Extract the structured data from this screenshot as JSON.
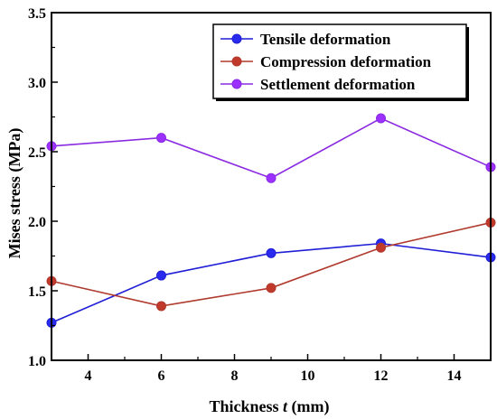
{
  "chart_data": {
    "type": "line",
    "xlabel_prefix": "Thickness ",
    "xlabel_var": "t",
    "xlabel_suffix": " (mm)",
    "ylabel": "Mises stress (MPa)",
    "xlim": [
      3,
      15
    ],
    "ylim": [
      1.0,
      3.5
    ],
    "xticks": [
      4,
      6,
      8,
      10,
      12,
      14
    ],
    "yticks": [
      1.0,
      1.5,
      2.0,
      2.5,
      3.0,
      3.5
    ],
    "ytick_labels": [
      "1.0",
      "1.5",
      "2.0",
      "2.5",
      "3.0",
      "3.5"
    ],
    "x": [
      3,
      6,
      9,
      12,
      15
    ],
    "legend_position": "top-right",
    "series": [
      {
        "name": "Tensile deformation",
        "values": [
          1.27,
          1.61,
          1.77,
          1.84,
          1.74
        ],
        "color": "#1f1fd6",
        "marker_color": "#2a2aee"
      },
      {
        "name": "Compression deformation",
        "values": [
          1.57,
          1.39,
          1.52,
          1.81,
          1.99
        ],
        "color": "#b03a2e",
        "marker_color": "#c0392b"
      },
      {
        "name": "Settlement deformation",
        "values": [
          2.54,
          2.6,
          2.31,
          2.74,
          2.39
        ],
        "color": "#8a2be2",
        "marker_color": "#9b30ff"
      }
    ]
  }
}
